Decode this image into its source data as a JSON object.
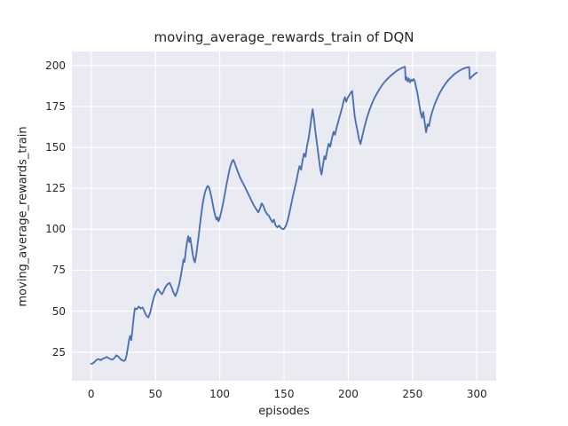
{
  "figure": {
    "title": "moving_average_rewards_train of DQN"
  },
  "chart_data": {
    "type": "line",
    "title": "moving_average_rewards_train of DQN",
    "xlabel": "episodes",
    "ylabel": "moving_average_rewards_train",
    "x_ticks": [
      0,
      50,
      100,
      150,
      200,
      250,
      300
    ],
    "y_ticks": [
      25,
      50,
      75,
      100,
      125,
      150,
      175,
      200
    ],
    "xlim": [
      -15,
      315
    ],
    "ylim": [
      7.5,
      208.6
    ],
    "grid": true,
    "legend_position": "none",
    "style": "seaborn-darkgrid",
    "colors": {
      "line": "#4c72b0",
      "plot_background": "#eaeaf2",
      "grid": "#ffffff",
      "text": "#262626"
    },
    "series": [
      {
        "name": "moving_average_rewards_train",
        "x": [
          0,
          1.5,
          3,
          4.5,
          6,
          7.5,
          9,
          10.5,
          12,
          13.5,
          15,
          16.5,
          18,
          19.5,
          21,
          22.5,
          24,
          25.5,
          26.5,
          27.5,
          28.5,
          29.5,
          30.3,
          31.2,
          32.2,
          33.2,
          34,
          35.5,
          37,
          38.5,
          40,
          41.5,
          43,
          44.5,
          46,
          47.5,
          49,
          50.5,
          52,
          53.5,
          55,
          56.5,
          58,
          59.5,
          61,
          62.5,
          64,
          65.5,
          67,
          68.5,
          69.5,
          70.8,
          71.8,
          72.6,
          73.6,
          74.6,
          75.5,
          76.3,
          77.1,
          78,
          79,
          80,
          80.7,
          81.7,
          82.7,
          83.7,
          84.7,
          85.7,
          86.7,
          87.7,
          88.7,
          89.7,
          90.7,
          91.7,
          92.7,
          93.7,
          94.7,
          95.7,
          96.7,
          97.5,
          98.3,
          99.1,
          100,
          101.2,
          102.4,
          103.6,
          104.8,
          106,
          107.2,
          108.4,
          109.6,
          110.5,
          111.5,
          112.7,
          114,
          115.5,
          117,
          118.5,
          120,
          121.5,
          123,
          124.5,
          126,
          127.3,
          128.6,
          130,
          131.3,
          132.6,
          134,
          135.4,
          136.8,
          138.2,
          139.6,
          141,
          142.2,
          143.4,
          144.8,
          146.2,
          147.6,
          149,
          150,
          151.4,
          152.8,
          154.2,
          155.6,
          157,
          158.4,
          159.8,
          161,
          162.1,
          163.3,
          164.5,
          165.5,
          166.7,
          167.9,
          169.1,
          170.3,
          171.4,
          172.3,
          173.4,
          174.4,
          175.4,
          176.4,
          177.4,
          178.4,
          179.2,
          180.3,
          181.4,
          182.4,
          183.6,
          184.8,
          186,
          187.3,
          188.6,
          189.7,
          191,
          192.4,
          193.8,
          195.2,
          196.4,
          197.4,
          198.4,
          199.6,
          200.8,
          202,
          203,
          204,
          205,
          206,
          207.1,
          208.3,
          209.5,
          211,
          212.7,
          214.5,
          216.5,
          218.5,
          220.5,
          222.5,
          224.5,
          226.5,
          228.5,
          230.5,
          232.5,
          234.5,
          236.5,
          238.5,
          240.5,
          242,
          243.5,
          244.1,
          244.6,
          245.4,
          246.2,
          247.1,
          248,
          248.9,
          249.8,
          250.7,
          251.6,
          252.6,
          253.8,
          255,
          256.2,
          257.3,
          258.3,
          259.4,
          260.5,
          261.7,
          262.8,
          264,
          265.5,
          267.5,
          269.5,
          271.5,
          273.5,
          275.5,
          277.5,
          279.5,
          281.5,
          283.5,
          285.5,
          287.5,
          289.5,
          291.5,
          293.3,
          294,
          294.5,
          295.8,
          297.2,
          298.6,
          300
        ],
        "y": [
          17.8,
          18.2,
          19.3,
          20.4,
          20.7,
          20,
          20.9,
          21.4,
          22,
          21.4,
          20.7,
          20.4,
          21.3,
          23,
          22.4,
          21,
          20,
          19.6,
          20.2,
          23,
          27.5,
          32.5,
          34.8,
          32.4,
          39.5,
          47,
          51.8,
          51.2,
          52.8,
          51.6,
          52.3,
          49.8,
          47.2,
          46.2,
          49.5,
          54.5,
          59,
          62,
          63.6,
          61.7,
          60.3,
          62.5,
          65,
          66.5,
          67.3,
          64.7,
          61.5,
          59.2,
          62.3,
          66.5,
          70.5,
          76.5,
          81.5,
          80,
          86.5,
          92.5,
          95.8,
          92.3,
          94.9,
          90.1,
          84.6,
          81.1,
          79.8,
          84.3,
          90.2,
          96.5,
          103.2,
          109.6,
          115.3,
          119.8,
          123,
          125.2,
          126.5,
          125.4,
          122.6,
          118.9,
          114.8,
          110.9,
          107.8,
          105.9,
          107.3,
          104.8,
          106.9,
          110.6,
          115.1,
          120,
          125.1,
          130.2,
          134.9,
          138.8,
          141.4,
          142.4,
          140.9,
          138,
          135.2,
          132.3,
          129.8,
          127.5,
          125.2,
          122.8,
          120.3,
          117.8,
          115.5,
          113.6,
          112,
          110.4,
          112.5,
          115.8,
          114.2,
          111.1,
          109.3,
          108.3,
          106.2,
          104.3,
          105.9,
          102.5,
          101.2,
          102.3,
          100.8,
          100.1,
          100.3,
          101.9,
          105.3,
          110,
          115.2,
          120.4,
          125.3,
          130,
          134.9,
          138.6,
          136.4,
          142.2,
          146.2,
          144.3,
          150.8,
          155.5,
          161.8,
          168.5,
          173.3,
          167,
          160,
          153.8,
          147.9,
          141.5,
          136,
          133.4,
          139,
          144.6,
          142.8,
          148.3,
          152.3,
          150.4,
          155.6,
          159.6,
          157.7,
          162.3,
          166.3,
          170.1,
          174.3,
          178.4,
          180.7,
          177.9,
          180.3,
          182,
          183.4,
          184.4,
          176.8,
          168.9,
          164.7,
          160.3,
          155.2,
          152,
          157.3,
          162.7,
          168,
          172.8,
          176.9,
          180.4,
          183.3,
          185.9,
          188.2,
          190.2,
          191.9,
          193.4,
          194.8,
          196.1,
          197.2,
          198.1,
          198.7,
          199.2,
          199.3,
          191.3,
          192.9,
          190.2,
          192.1,
          189.7,
          191.4,
          190.6,
          191.8,
          190.9,
          187.3,
          183,
          177.2,
          171.6,
          168.1,
          171.7,
          165.4,
          159.3,
          164.2,
          163,
          168,
          172.3,
          176.9,
          180.6,
          183.8,
          186.5,
          188.8,
          190.8,
          192.5,
          194,
          195.3,
          196.4,
          197.4,
          198.1,
          198.7,
          199,
          199.1,
          191.9,
          193,
          194,
          194.9,
          195.7
        ]
      }
    ]
  }
}
